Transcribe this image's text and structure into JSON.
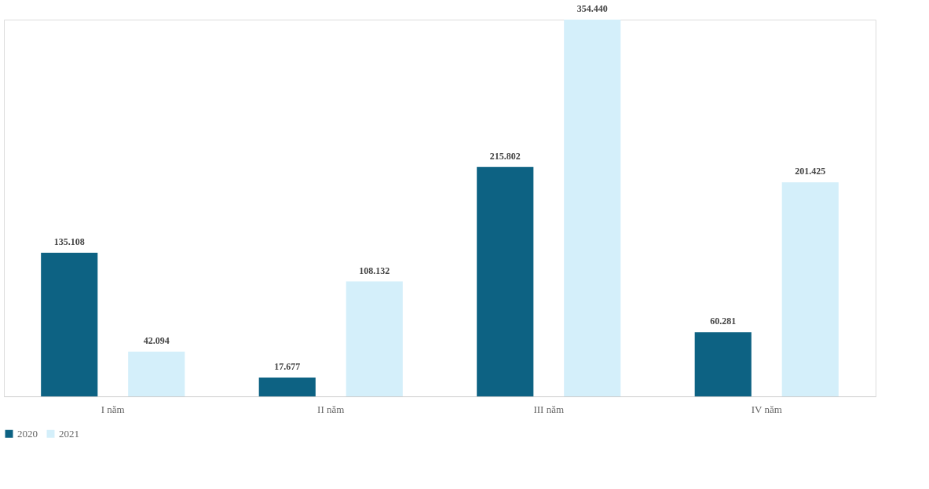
{
  "chart_data": {
    "type": "bar",
    "categories": [
      "I năm",
      "II năm",
      "III năm",
      "IV năm"
    ],
    "series": [
      {
        "name": "2020",
        "color": "#0d6283",
        "values": [
          135.108,
          17.677,
          215.802,
          60.281
        ],
        "value_labels": [
          "135.108",
          "17.677",
          "215.802",
          "60.281"
        ]
      },
      {
        "name": "2021",
        "color": "#d4effa",
        "values": [
          42.094,
          108.132,
          354.44,
          201.425
        ],
        "value_labels": [
          "42.094",
          "108.132",
          "354.440",
          "201.425"
        ]
      }
    ],
    "legend": "bottom",
    "grid": false
  }
}
